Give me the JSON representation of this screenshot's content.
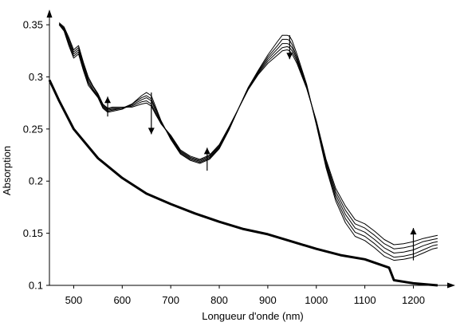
{
  "chart_data": {
    "type": "line",
    "title": "",
    "xlabel": "Longueur d'onde (nm)",
    "ylabel": "Absorption",
    "xlim": [
      450,
      1260
    ],
    "ylim": [
      0.1,
      0.36
    ],
    "x_ticks": [
      500,
      600,
      700,
      800,
      900,
      1000,
      1100,
      1200
    ],
    "x_tick_labels": [
      "500",
      "600",
      "700",
      "800",
      "900",
      "1000",
      "1100",
      "1200"
    ],
    "y_ticks": [
      0.1,
      0.15,
      0.2,
      0.25,
      0.3,
      0.35
    ],
    "y_tick_labels": [
      "0.1",
      "0.15",
      "0.2",
      "0.25",
      "0.3",
      "0.35"
    ],
    "grid": false,
    "legend": "none",
    "series": [
      {
        "x": [
          470,
          480,
          490,
          500,
          505,
          510,
          520,
          530,
          540,
          550,
          560,
          570,
          580,
          600,
          620,
          640,
          650,
          660,
          670,
          680,
          700,
          720,
          740,
          760,
          780,
          800,
          820,
          840,
          860,
          880,
          900,
          920,
          930,
          940,
          945,
          950,
          960,
          980,
          1000,
          1020,
          1040,
          1060,
          1080,
          1100,
          1120,
          1140,
          1160,
          1180,
          1200,
          1220,
          1240,
          1250
        ],
        "y": [
          0.35,
          0.344,
          0.33,
          0.318,
          0.32,
          0.322,
          0.306,
          0.292,
          0.286,
          0.28,
          0.27,
          0.266,
          0.267,
          0.269,
          0.274,
          0.282,
          0.285,
          0.282,
          0.27,
          0.258,
          0.24,
          0.226,
          0.22,
          0.217,
          0.221,
          0.231,
          0.249,
          0.27,
          0.29,
          0.306,
          0.321,
          0.334,
          0.34,
          0.34,
          0.339,
          0.335,
          0.322,
          0.293,
          0.254,
          0.213,
          0.181,
          0.16,
          0.147,
          0.143,
          0.136,
          0.128,
          0.124,
          0.125,
          0.127,
          0.131,
          0.135,
          0.136
        ]
      },
      {
        "x": [
          470,
          480,
          490,
          500,
          505,
          510,
          520,
          530,
          540,
          550,
          560,
          570,
          580,
          600,
          620,
          640,
          650,
          660,
          670,
          680,
          700,
          720,
          740,
          760,
          780,
          800,
          820,
          840,
          860,
          880,
          900,
          920,
          930,
          940,
          945,
          950,
          960,
          980,
          1000,
          1020,
          1040,
          1060,
          1080,
          1100,
          1120,
          1140,
          1160,
          1180,
          1200,
          1220,
          1240,
          1250
        ],
        "y": [
          0.35,
          0.345,
          0.332,
          0.32,
          0.322,
          0.324,
          0.308,
          0.294,
          0.287,
          0.281,
          0.271,
          0.267,
          0.268,
          0.27,
          0.274,
          0.28,
          0.282,
          0.279,
          0.268,
          0.257,
          0.241,
          0.227,
          0.221,
          0.218,
          0.222,
          0.232,
          0.25,
          0.27,
          0.29,
          0.305,
          0.319,
          0.33,
          0.336,
          0.336,
          0.335,
          0.331,
          0.319,
          0.292,
          0.255,
          0.215,
          0.184,
          0.164,
          0.151,
          0.147,
          0.14,
          0.132,
          0.127,
          0.128,
          0.13,
          0.134,
          0.138,
          0.139
        ]
      },
      {
        "x": [
          470,
          480,
          490,
          500,
          505,
          510,
          520,
          530,
          540,
          550,
          560,
          570,
          580,
          600,
          620,
          640,
          650,
          660,
          670,
          680,
          700,
          720,
          740,
          760,
          780,
          800,
          820,
          840,
          860,
          880,
          900,
          920,
          930,
          940,
          945,
          950,
          960,
          980,
          1000,
          1020,
          1040,
          1060,
          1080,
          1100,
          1120,
          1140,
          1160,
          1180,
          1200,
          1220,
          1240,
          1250
        ],
        "y": [
          0.351,
          0.346,
          0.334,
          0.322,
          0.324,
          0.326,
          0.31,
          0.296,
          0.288,
          0.282,
          0.272,
          0.268,
          0.269,
          0.27,
          0.273,
          0.278,
          0.28,
          0.277,
          0.266,
          0.256,
          0.242,
          0.228,
          0.222,
          0.219,
          0.223,
          0.233,
          0.25,
          0.27,
          0.289,
          0.304,
          0.317,
          0.327,
          0.332,
          0.332,
          0.331,
          0.328,
          0.317,
          0.291,
          0.256,
          0.217,
          0.187,
          0.168,
          0.155,
          0.151,
          0.144,
          0.136,
          0.131,
          0.132,
          0.134,
          0.138,
          0.141,
          0.142
        ]
      },
      {
        "x": [
          470,
          480,
          490,
          500,
          505,
          510,
          520,
          530,
          540,
          550,
          560,
          570,
          580,
          600,
          620,
          640,
          650,
          660,
          670,
          680,
          700,
          720,
          740,
          760,
          780,
          800,
          820,
          840,
          860,
          880,
          900,
          920,
          930,
          940,
          945,
          950,
          960,
          980,
          1000,
          1020,
          1040,
          1060,
          1080,
          1100,
          1120,
          1140,
          1160,
          1180,
          1200,
          1220,
          1240,
          1250
        ],
        "y": [
          0.351,
          0.347,
          0.336,
          0.324,
          0.326,
          0.328,
          0.312,
          0.298,
          0.29,
          0.283,
          0.273,
          0.269,
          0.27,
          0.27,
          0.272,
          0.276,
          0.277,
          0.274,
          0.264,
          0.255,
          0.243,
          0.229,
          0.223,
          0.22,
          0.224,
          0.234,
          0.251,
          0.27,
          0.289,
          0.303,
          0.315,
          0.324,
          0.328,
          0.329,
          0.328,
          0.325,
          0.315,
          0.29,
          0.257,
          0.219,
          0.19,
          0.172,
          0.159,
          0.155,
          0.148,
          0.14,
          0.135,
          0.136,
          0.138,
          0.142,
          0.144,
          0.145
        ]
      },
      {
        "x": [
          470,
          480,
          490,
          500,
          505,
          510,
          520,
          530,
          540,
          550,
          560,
          570,
          580,
          600,
          620,
          640,
          650,
          660,
          670,
          680,
          700,
          720,
          740,
          760,
          780,
          800,
          820,
          840,
          860,
          880,
          900,
          920,
          930,
          940,
          945,
          950,
          960,
          980,
          1000,
          1020,
          1040,
          1060,
          1080,
          1100,
          1120,
          1140,
          1160,
          1180,
          1200,
          1220,
          1240,
          1250
        ],
        "y": [
          0.352,
          0.348,
          0.338,
          0.326,
          0.328,
          0.33,
          0.314,
          0.3,
          0.291,
          0.284,
          0.274,
          0.27,
          0.271,
          0.271,
          0.271,
          0.274,
          0.275,
          0.272,
          0.263,
          0.255,
          0.244,
          0.23,
          0.224,
          0.221,
          0.225,
          0.235,
          0.252,
          0.27,
          0.288,
          0.302,
          0.313,
          0.321,
          0.325,
          0.326,
          0.325,
          0.322,
          0.313,
          0.289,
          0.258,
          0.221,
          0.193,
          0.176,
          0.163,
          0.159,
          0.152,
          0.144,
          0.139,
          0.14,
          0.142,
          0.145,
          0.147,
          0.148
        ]
      },
      {
        "x": [
          450,
          470,
          500,
          550,
          600,
          650,
          700,
          750,
          800,
          850,
          900,
          950,
          1000,
          1050,
          1100,
          1150,
          1160,
          1200,
          1250
        ],
        "y": [
          0.297,
          0.277,
          0.25,
          0.222,
          0.203,
          0.188,
          0.178,
          0.169,
          0.161,
          0.154,
          0.149,
          0.142,
          0.135,
          0.129,
          0.125,
          0.117,
          0.105,
          0.102,
          0.1
        ]
      }
    ],
    "arrows": [
      {
        "x": 570,
        "y_from": 0.262,
        "y_to": 0.281
      },
      {
        "x": 660,
        "y_from": 0.285,
        "y_to": 0.245
      },
      {
        "x": 775,
        "y_from": 0.21,
        "y_to": 0.232
      },
      {
        "x": 945,
        "y_from": 0.34,
        "y_to": 0.317
      },
      {
        "x": 1200,
        "y_from": 0.124,
        "y_to": 0.155
      }
    ]
  }
}
